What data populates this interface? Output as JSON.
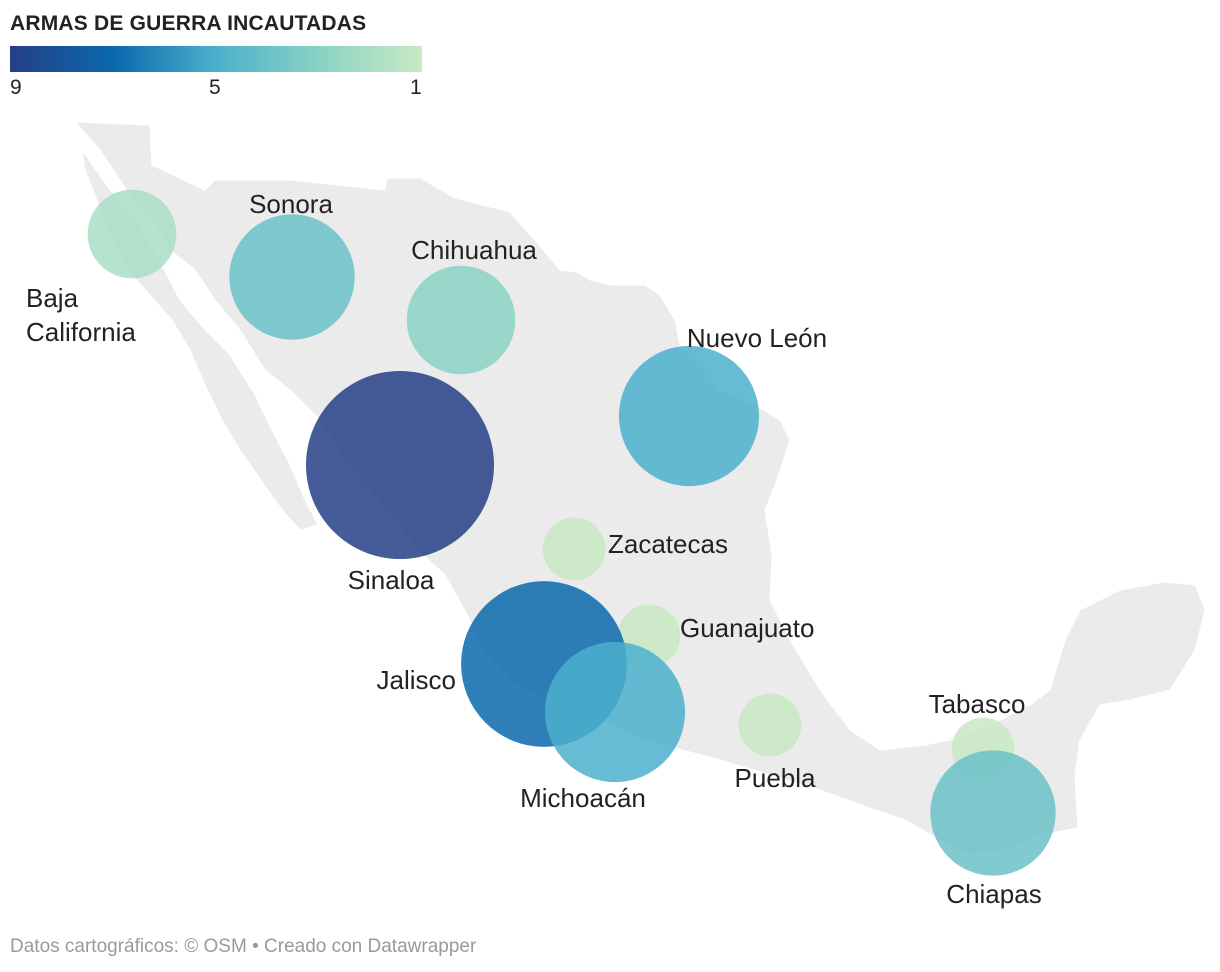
{
  "legend": {
    "title": "ARMAS DE GUERRA INCAUTADAS",
    "ticks": [
      "9",
      "5",
      "1"
    ],
    "scale_min": 1,
    "scale_max": 9,
    "colors": [
      "#253f86",
      "#0a68ad",
      "#4bb0cc",
      "#89d2c4",
      "#c8e9c4"
    ]
  },
  "map": {
    "land_color": "#ebebeb",
    "regions": [
      {
        "name": "Baja California",
        "label_lines": [
          "Baja",
          "California"
        ],
        "value": 2
      },
      {
        "name": "Sonora",
        "label_lines": [
          "Sonora"
        ],
        "value": 4
      },
      {
        "name": "Chihuahua",
        "label_lines": [
          "Chihuahua"
        ],
        "value": 3
      },
      {
        "name": "Nuevo León",
        "label_lines": [
          "Nuevo León"
        ],
        "value": 5
      },
      {
        "name": "Sinaloa",
        "label_lines": [
          "Sinaloa"
        ],
        "value": 9
      },
      {
        "name": "Zacatecas",
        "label_lines": [
          "Zacatecas"
        ],
        "value": 1
      },
      {
        "name": "Guanajuato",
        "label_lines": [
          "Guanajuato"
        ],
        "value": 1
      },
      {
        "name": "Jalisco",
        "label_lines": [
          "Jalisco"
        ],
        "value": 7
      },
      {
        "name": "Michoacán",
        "label_lines": [
          "Michoacán"
        ],
        "value": 5
      },
      {
        "name": "Puebla",
        "label_lines": [
          "Puebla"
        ],
        "value": 1
      },
      {
        "name": "Tabasco",
        "label_lines": [
          "Tabasco"
        ],
        "value": 1
      },
      {
        "name": "Chiapas",
        "label_lines": [
          "Chiapas"
        ],
        "value": 4
      }
    ]
  },
  "footer": {
    "map_data": "Datos cartográficos: © OSM",
    "separator": " • ",
    "credit": "Creado con Datawrapper"
  }
}
